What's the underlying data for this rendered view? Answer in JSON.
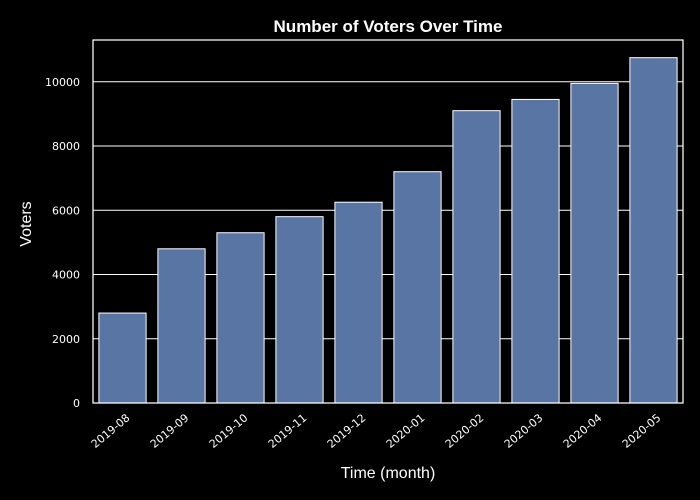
{
  "chart_data": {
    "type": "bar",
    "title": "Number of Voters Over Time",
    "xlabel": "Time (month)",
    "ylabel": "Voters",
    "categories": [
      "2019-08",
      "2019-09",
      "2019-10",
      "2019-11",
      "2019-12",
      "2020-01",
      "2020-02",
      "2020-03",
      "2020-04",
      "2020-05"
    ],
    "values": [
      2800,
      4800,
      5300,
      5800,
      6250,
      7200,
      9100,
      9450,
      9950,
      10750
    ],
    "ylim": [
      0,
      11300
    ],
    "yticks": [
      0,
      2000,
      4000,
      6000,
      8000,
      10000
    ],
    "grid": true,
    "bar_color": "#5975a4",
    "background": "#000000",
    "foreground": "#ffffff"
  }
}
